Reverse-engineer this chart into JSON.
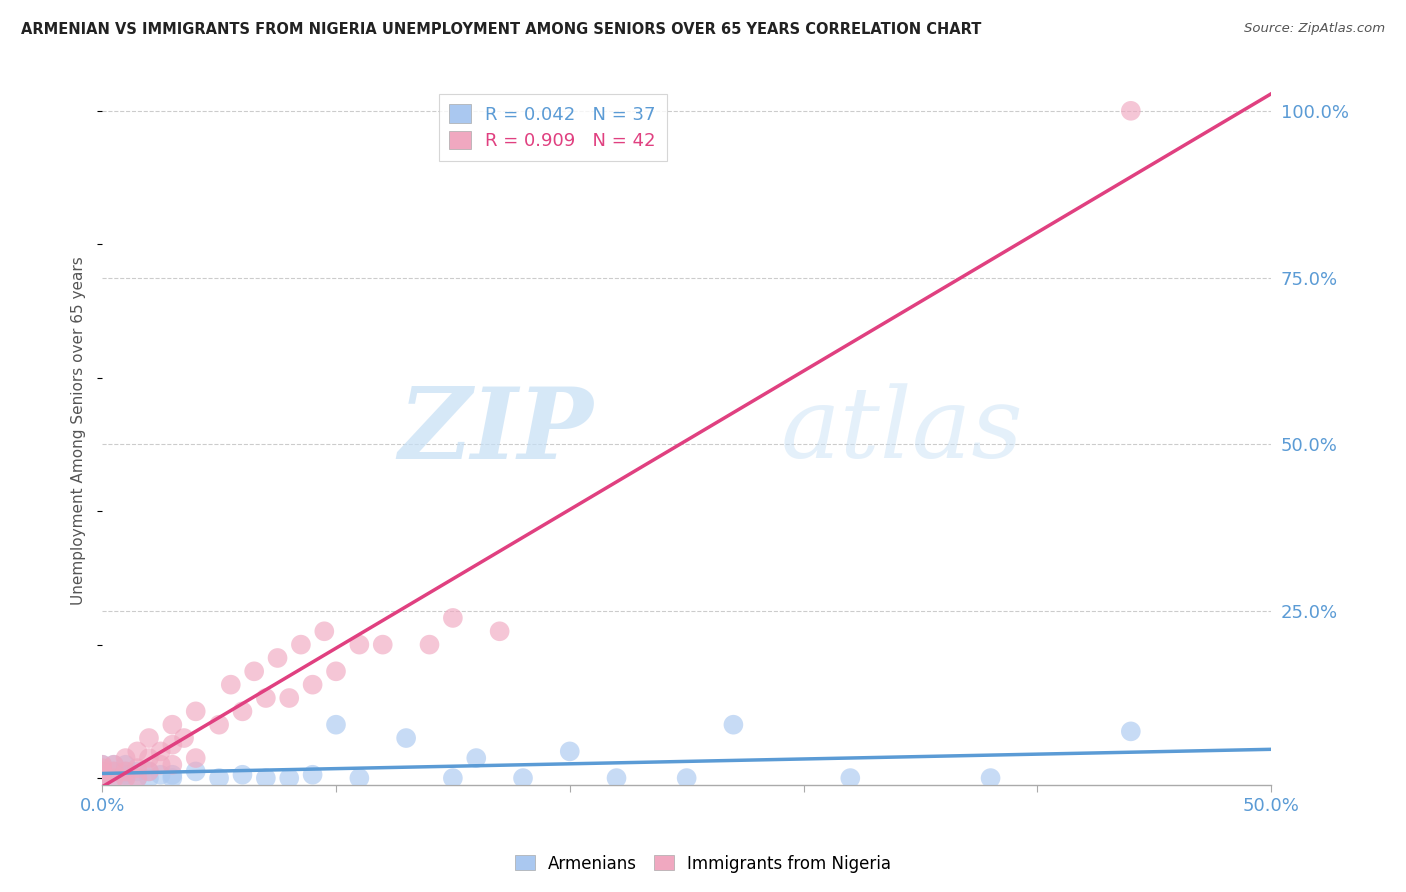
{
  "title": "ARMENIAN VS IMMIGRANTS FROM NIGERIA UNEMPLOYMENT AMONG SENIORS OVER 65 YEARS CORRELATION CHART",
  "source": "Source: ZipAtlas.com",
  "ylabel": "Unemployment Among Seniors over 65 years",
  "xlim": [
    0.0,
    0.5
  ],
  "ylim": [
    -0.01,
    1.05
  ],
  "xticks": [
    0.0,
    0.1,
    0.2,
    0.3,
    0.4,
    0.5
  ],
  "xtick_labels": [
    "0.0%",
    "",
    "",
    "",
    "",
    "50.0%"
  ],
  "ytick_labels": [
    "25.0%",
    "50.0%",
    "75.0%",
    "100.0%"
  ],
  "yticks": [
    0.25,
    0.5,
    0.75,
    1.0
  ],
  "armenian_R": "0.042",
  "armenian_N": "37",
  "nigeria_R": "0.909",
  "nigeria_N": "42",
  "background_color": "#ffffff",
  "watermark_zip": "ZIP",
  "watermark_atlas": "atlas",
  "armenian_color": "#aac8f0",
  "nigeria_color": "#f0a8c0",
  "armenian_line_color": "#5b9bd5",
  "nigeria_line_color": "#e04080",
  "armenian_points_x": [
    0.0,
    0.0,
    0.0,
    0.0,
    0.005,
    0.005,
    0.005,
    0.01,
    0.01,
    0.01,
    0.01,
    0.015,
    0.015,
    0.02,
    0.02,
    0.025,
    0.03,
    0.03,
    0.04,
    0.05,
    0.06,
    0.07,
    0.08,
    0.09,
    0.1,
    0.11,
    0.13,
    0.15,
    0.16,
    0.18,
    0.2,
    0.22,
    0.25,
    0.27,
    0.32,
    0.38,
    0.44
  ],
  "armenian_points_y": [
    0.0,
    0.005,
    0.01,
    0.02,
    0.0,
    0.01,
    0.02,
    0.0,
    0.005,
    0.01,
    0.02,
    0.0,
    0.01,
    0.0,
    0.01,
    0.005,
    0.0,
    0.005,
    0.01,
    0.0,
    0.005,
    0.0,
    0.0,
    0.005,
    0.08,
    0.0,
    0.06,
    0.0,
    0.03,
    0.0,
    0.04,
    0.0,
    0.0,
    0.08,
    0.0,
    0.0,
    0.07
  ],
  "nigeria_points_x": [
    0.0,
    0.0,
    0.0,
    0.0,
    0.0,
    0.005,
    0.005,
    0.005,
    0.01,
    0.01,
    0.01,
    0.015,
    0.015,
    0.015,
    0.02,
    0.02,
    0.02,
    0.025,
    0.025,
    0.03,
    0.03,
    0.03,
    0.035,
    0.04,
    0.04,
    0.05,
    0.055,
    0.06,
    0.065,
    0.07,
    0.075,
    0.08,
    0.085,
    0.09,
    0.095,
    0.1,
    0.11,
    0.12,
    0.14,
    0.15,
    0.17,
    0.44
  ],
  "nigeria_points_y": [
    0.0,
    0.005,
    0.01,
    0.015,
    0.02,
    0.0,
    0.01,
    0.02,
    0.0,
    0.01,
    0.03,
    0.0,
    0.015,
    0.04,
    0.01,
    0.03,
    0.06,
    0.02,
    0.04,
    0.02,
    0.05,
    0.08,
    0.06,
    0.03,
    0.1,
    0.08,
    0.14,
    0.1,
    0.16,
    0.12,
    0.18,
    0.12,
    0.2,
    0.14,
    0.22,
    0.16,
    0.2,
    0.2,
    0.2,
    0.24,
    0.22,
    1.0
  ]
}
